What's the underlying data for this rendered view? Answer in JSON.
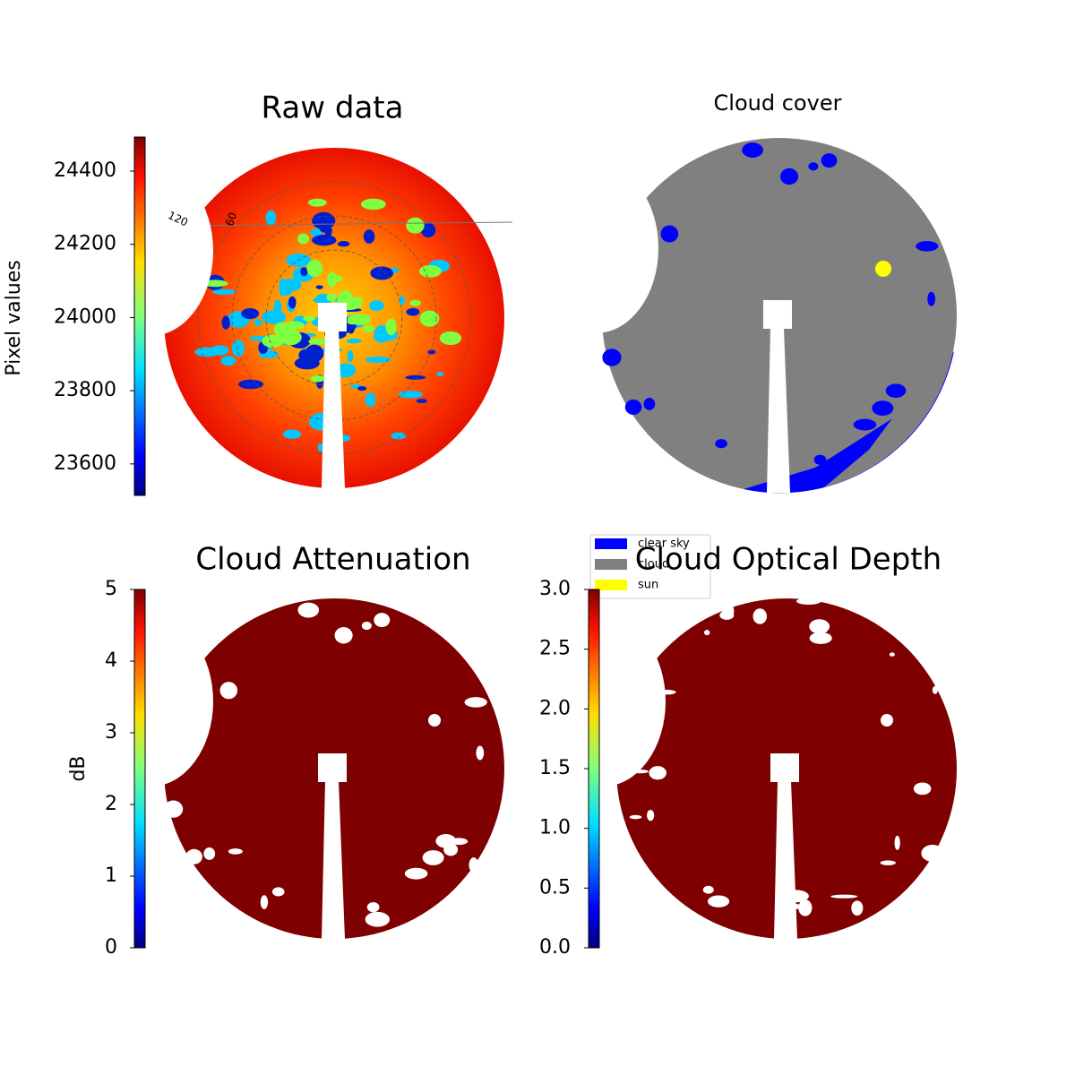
{
  "chart_data": [
    {
      "type": "image",
      "title": "Raw data",
      "colormap": "jet",
      "colorbar": {
        "label": "Pixel values",
        "lim": [
          23514,
          24493
        ],
        "ticks": [
          23600,
          23800,
          24000,
          24200,
          24400
        ]
      },
      "polar_labels": [
        "120",
        "60"
      ]
    },
    {
      "type": "image",
      "title": "Cloud cover",
      "legend": [
        {
          "name": "clear sky",
          "color": "#0000ff"
        },
        {
          "name": "cloud",
          "color": "#808080"
        },
        {
          "name": "sun",
          "color": "#ffff00"
        }
      ]
    },
    {
      "type": "image",
      "title": "Cloud Attenuation",
      "colormap": "jet",
      "colorbar": {
        "label": "dB",
        "lim": [
          0,
          5
        ],
        "ticks": [
          0,
          1,
          2,
          3,
          4,
          5
        ]
      }
    },
    {
      "type": "image",
      "title": "Cloud Optical Depth",
      "colormap": "jet",
      "colorbar": {
        "lim": [
          0,
          3
        ],
        "ticks": [
          {
            "value": 0,
            "label": "0.0"
          },
          {
            "value": 0.5,
            "label": "0.5"
          },
          {
            "value": 1,
            "label": "1.0"
          },
          {
            "value": 1.5,
            "label": "1.5"
          },
          {
            "value": 2,
            "label": "2.0"
          },
          {
            "value": 2.5,
            "label": "2.5"
          },
          {
            "value": 3,
            "label": "3.0"
          }
        ]
      }
    }
  ]
}
